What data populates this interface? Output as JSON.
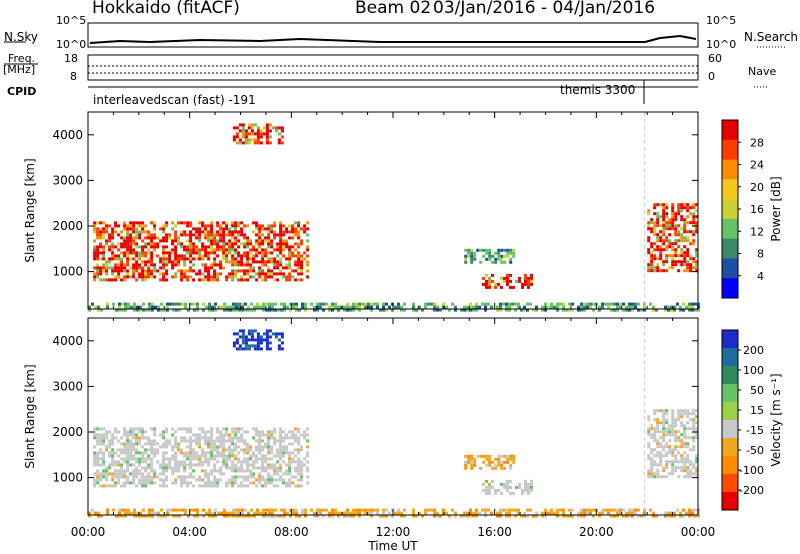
{
  "header": {
    "radar": "Hokkaido (fitACF)",
    "beam": "Beam 02",
    "date_range": "03/Jan/2016 - 04/Jan/2016"
  },
  "top_panels": {
    "nsky_label": "N.Sky",
    "nsearch_label": "N.Search",
    "nsky_ticks": [
      "10^5",
      "10^0"
    ],
    "nsearch_ticks": [
      "10^5",
      "10^0"
    ],
    "freq_label": "Freq.",
    "freq_unit": "[MHz]",
    "freq_ticks": [
      "18",
      "8"
    ],
    "nave_label": "Nave",
    "nave_ticks": [
      "60",
      "0"
    ],
    "cpid_label": "CPID",
    "cpid_segments": [
      {
        "name": "interleavedscan (fast) -191",
        "start_hour": 0,
        "end_hour": 21.9
      },
      {
        "name": "themis 3300",
        "start_hour": 21.9,
        "end_hour": 22.0
      }
    ]
  },
  "chart_data": [
    {
      "type": "heatmap",
      "panel": "power",
      "ylabel": "Slant Range [km]",
      "xlabel": "",
      "xlim": [
        0,
        24
      ],
      "ylim": [
        180,
        4500
      ],
      "yticks": [
        1000,
        2000,
        3000,
        4000
      ],
      "colorbar": {
        "label": "Power [dB]",
        "ticks": [
          4,
          8,
          12,
          16,
          20,
          24,
          28
        ],
        "range": [
          0,
          32
        ],
        "colors": [
          "#0000ff",
          "#1f4fa0",
          "#3a8a6a",
          "#66c266",
          "#c8d234",
          "#f4c81e",
          "#ff8c00",
          "#ff3c00",
          "#e60000"
        ]
      },
      "regions": [
        {
          "t0": 0.2,
          "t1": 8.6,
          "r0": 850,
          "r1": 2100,
          "level": "high"
        },
        {
          "t0": 5.7,
          "t1": 7.6,
          "r0": 3800,
          "r1": 4250,
          "level": "high"
        },
        {
          "t0": 14.8,
          "t1": 16.8,
          "r0": 1200,
          "r1": 1500,
          "level": "low"
        },
        {
          "t0": 15.5,
          "t1": 17.5,
          "r0": 650,
          "r1": 950,
          "level": "high"
        },
        {
          "t0": 22.0,
          "t1": 24.0,
          "r0": 1000,
          "r1": 2500,
          "level": "high"
        },
        {
          "t0": 0.0,
          "t1": 24.0,
          "r0": 180,
          "r1": 320,
          "level": "low"
        }
      ]
    },
    {
      "type": "heatmap",
      "panel": "velocity",
      "ylabel": "Slant Range [km]",
      "xlabel": "Time UT",
      "xlim": [
        0,
        24
      ],
      "ylim": [
        180,
        4500
      ],
      "yticks": [
        1000,
        2000,
        3000,
        4000
      ],
      "xticks": [
        "00:00",
        "04:00",
        "08:00",
        "12:00",
        "16:00",
        "20:00",
        "00:00"
      ],
      "colorbar": {
        "label": "Velocity [m s^-1]",
        "ticks": [
          200,
          100,
          50,
          15,
          -15,
          -50,
          -100,
          -200
        ],
        "colors": [
          "#1a2ccc",
          "#1f6aa0",
          "#2e8a5a",
          "#66c266",
          "#9ad04a",
          "#c8c8c8",
          "#f0a820",
          "#ff8c00",
          "#ff4a00",
          "#e60000"
        ]
      },
      "regions": [
        {
          "t0": 0.2,
          "t1": 8.6,
          "r0": 850,
          "r1": 2100,
          "level": "ground"
        },
        {
          "t0": 5.7,
          "t1": 7.6,
          "r0": 3800,
          "r1": 4250,
          "level": "toward"
        },
        {
          "t0": 14.8,
          "t1": 16.8,
          "r0": 1200,
          "r1": 1500,
          "level": "away"
        },
        {
          "t0": 15.5,
          "t1": 17.5,
          "r0": 650,
          "r1": 950,
          "level": "ground"
        },
        {
          "t0": 22.0,
          "t1": 24.0,
          "r0": 1000,
          "r1": 2500,
          "level": "ground"
        },
        {
          "t0": 0.0,
          "t1": 24.0,
          "r0": 180,
          "r1": 320,
          "level": "away"
        }
      ]
    }
  ],
  "colorbar_power_label": "Power [dB]",
  "colorbar_velocity_label": "Velocity [m s⁻¹]",
  "xaxis_label": "Time UT"
}
